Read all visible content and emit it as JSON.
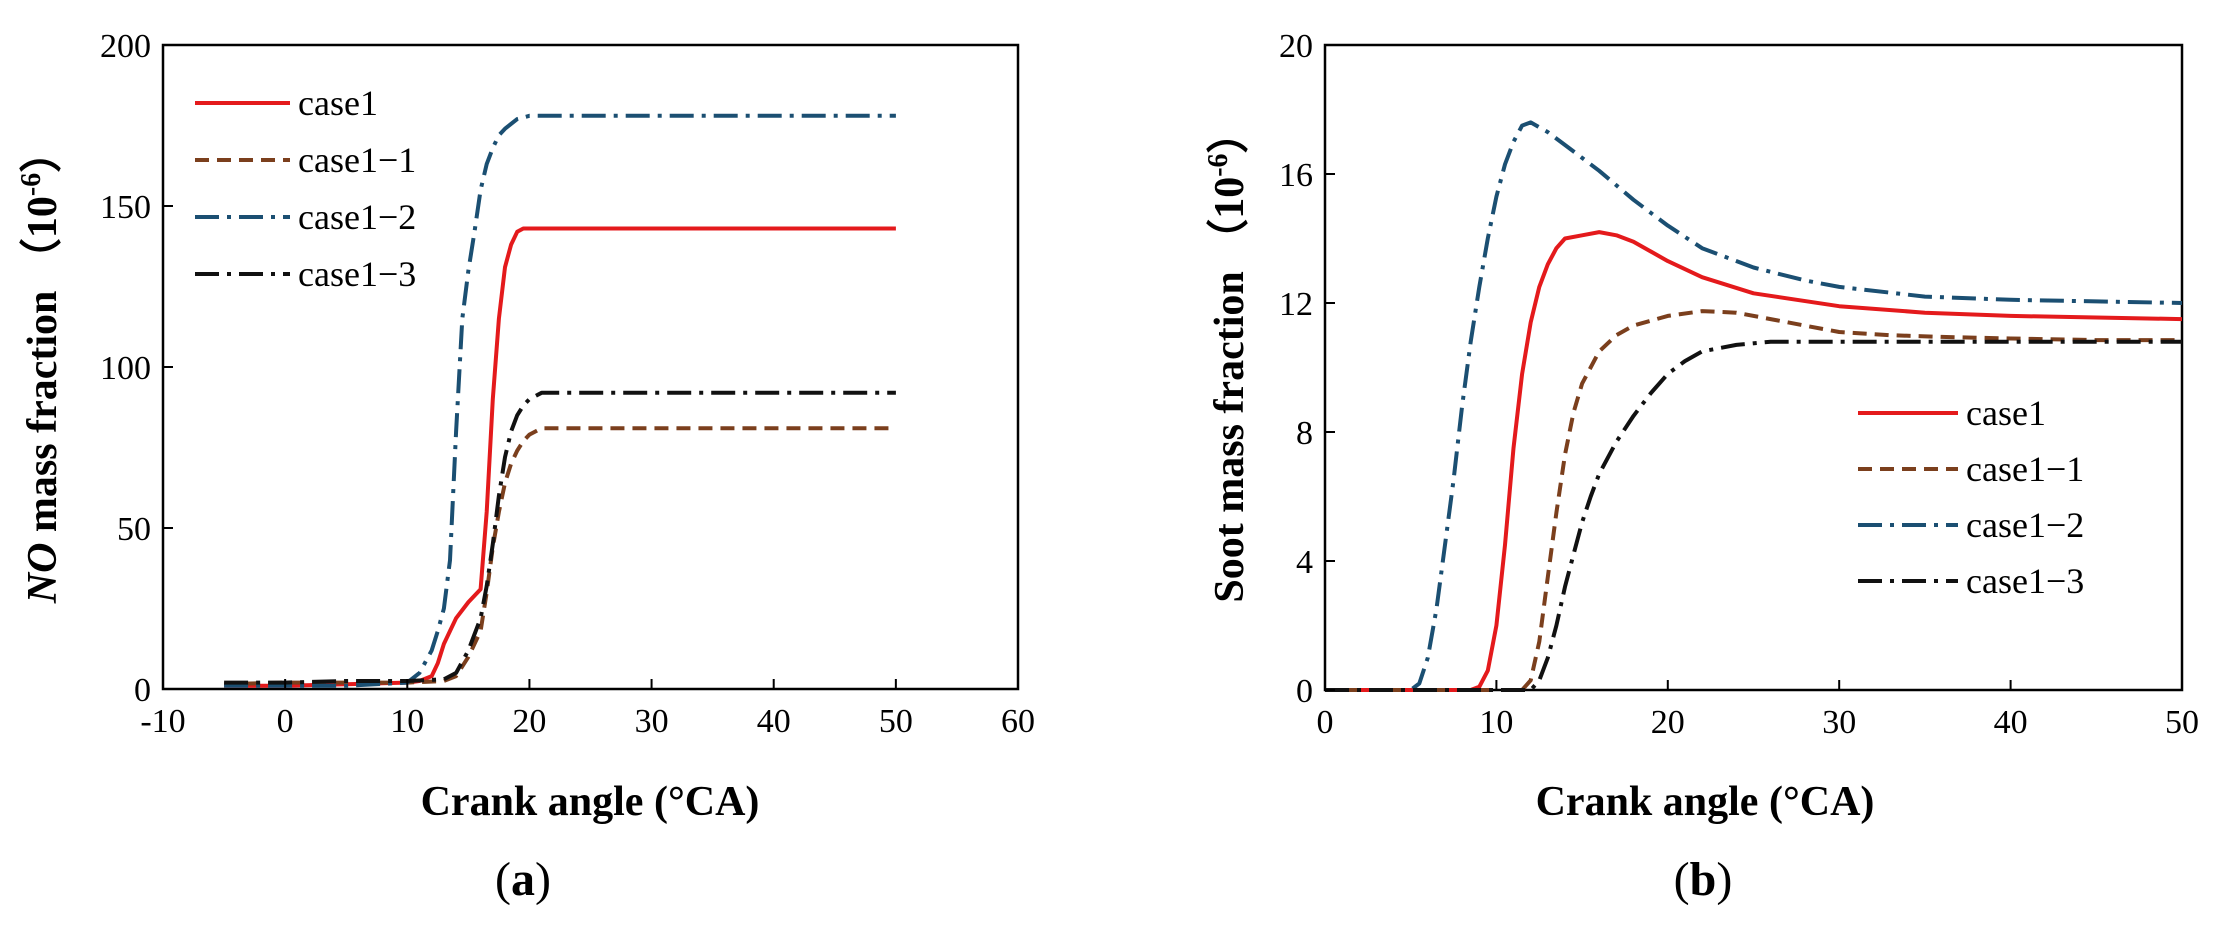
{
  "chart_data": [
    {
      "type": "line",
      "panel_label": "(a)",
      "panel_letter": "a",
      "xlabel": "Crank angle (°CA)",
      "ylabel_prefix": "NO",
      "ylabel_rest": " mass fraction （10",
      "ylabel_exp": "-6",
      "ylabel_close": "）",
      "xlim": [
        -10,
        60
      ],
      "ylim": [
        0,
        200
      ],
      "xticks": [
        -10,
        0,
        10,
        20,
        30,
        40,
        50,
        60
      ],
      "yticks": [
        0,
        50,
        100,
        150,
        200
      ],
      "legend_position": "top-left",
      "series": [
        {
          "name": "case1",
          "color": "#e41a1c",
          "dash": "solid",
          "x": [
            -5,
            0,
            5,
            10,
            11,
            12,
            12.5,
            13,
            13.5,
            14,
            15,
            16,
            16.5,
            17,
            17.5,
            18,
            18.5,
            19,
            19.5,
            20,
            25,
            30,
            35,
            40,
            45,
            50
          ],
          "y": [
            1,
            1,
            1.5,
            2,
            2.5,
            4,
            8,
            14,
            18,
            22,
            27,
            31,
            55,
            90,
            115,
            131,
            138,
            142,
            143,
            143,
            143,
            143,
            143,
            143,
            143,
            143
          ]
        },
        {
          "name": "case1−1",
          "color": "#7b3f1d",
          "dash": "dashed",
          "x": [
            -5,
            0,
            5,
            10,
            13,
            14,
            15,
            16,
            16.5,
            17,
            17.5,
            18,
            18.5,
            19,
            19.5,
            20,
            21,
            25,
            30,
            35,
            40,
            45,
            50
          ],
          "y": [
            1.5,
            2,
            2,
            2,
            2.5,
            4,
            10,
            18,
            30,
            44,
            55,
            64,
            70,
            74,
            77,
            79,
            81,
            81,
            81,
            81,
            81,
            81,
            81
          ]
        },
        {
          "name": "case1−2",
          "color": "#1b4f72",
          "dash": "dashdot",
          "x": [
            -5,
            0,
            5,
            10,
            11,
            12,
            12.5,
            13,
            13.5,
            14,
            14.5,
            15,
            15.5,
            16,
            16.5,
            17,
            17.5,
            18,
            19,
            20,
            25,
            30,
            35,
            40,
            45,
            50
          ],
          "y": [
            1,
            1,
            1,
            2,
            5,
            12,
            18,
            25,
            40,
            80,
            115,
            130,
            142,
            155,
            163,
            168,
            172,
            174,
            177,
            178,
            178,
            178,
            178,
            178,
            178,
            178
          ]
        },
        {
          "name": "case1−3",
          "color": "#111111",
          "dash": "dashdot",
          "x": [
            -5,
            0,
            5,
            10,
            13,
            14,
            15,
            16,
            16.5,
            17,
            17.5,
            18,
            18.5,
            19,
            19.5,
            20,
            21,
            25,
            30,
            35,
            40,
            45,
            50
          ],
          "y": [
            2,
            2,
            2.5,
            2.5,
            3,
            5,
            12,
            22,
            32,
            45,
            60,
            72,
            80,
            85,
            88,
            90,
            92,
            92,
            92,
            92,
            92,
            92,
            92
          ]
        }
      ]
    },
    {
      "type": "line",
      "panel_label": "(b)",
      "panel_letter": "b",
      "xlabel": "Crank angle (°CA)",
      "ylabel_prefix": "",
      "ylabel_rest": "Soot mass fraction （10",
      "ylabel_exp": "-6",
      "ylabel_close": "）",
      "xlim": [
        0,
        50
      ],
      "ylim": [
        0,
        20
      ],
      "xticks": [
        0,
        10,
        20,
        30,
        40,
        50
      ],
      "yticks": [
        0,
        4,
        8,
        12,
        16,
        20
      ],
      "legend_position": "center-right",
      "series": [
        {
          "name": "case1",
          "color": "#e41a1c",
          "dash": "solid",
          "x": [
            0,
            5,
            8.5,
            9,
            9.5,
            10,
            10.5,
            11,
            11.5,
            12,
            12.5,
            13,
            13.5,
            14,
            15,
            16,
            17,
            18,
            20,
            22,
            25,
            30,
            35,
            40,
            45,
            50
          ],
          "y": [
            0,
            0,
            0,
            0.1,
            0.6,
            2,
            4.5,
            7.5,
            9.8,
            11.4,
            12.5,
            13.2,
            13.7,
            14,
            14.1,
            14.2,
            14.1,
            13.9,
            13.3,
            12.8,
            12.3,
            11.9,
            11.7,
            11.6,
            11.55,
            11.5
          ]
        },
        {
          "name": "case1−1",
          "color": "#7b3f1d",
          "dash": "dashed",
          "x": [
            0,
            8,
            11.5,
            12,
            12.5,
            13,
            13.5,
            14,
            14.5,
            15,
            16,
            17,
            18,
            20,
            22,
            24,
            26,
            28,
            30,
            33,
            36,
            40,
            45,
            50
          ],
          "y": [
            0,
            0,
            0,
            0.3,
            1.5,
            3.5,
            5.5,
            7.3,
            8.6,
            9.5,
            10.5,
            11,
            11.3,
            11.6,
            11.75,
            11.7,
            11.5,
            11.3,
            11.1,
            11,
            10.95,
            10.9,
            10.85,
            10.85
          ]
        },
        {
          "name": "case1−2",
          "color": "#1b4f72",
          "dash": "dashdot",
          "x": [
            0,
            5,
            5.5,
            6,
            6.5,
            7,
            7.5,
            8,
            8.5,
            9,
            9.5,
            10,
            10.5,
            11,
            11.5,
            12,
            13,
            14,
            15,
            16,
            18,
            20,
            22,
            25,
            28,
            30,
            35,
            40,
            45,
            50
          ],
          "y": [
            0,
            0,
            0.2,
            1,
            2.5,
            4.5,
            6.5,
            8.8,
            10.8,
            12.5,
            14,
            15.3,
            16.3,
            17,
            17.5,
            17.6,
            17.3,
            16.9,
            16.5,
            16.1,
            15.2,
            14.4,
            13.7,
            13.1,
            12.7,
            12.5,
            12.2,
            12.1,
            12.05,
            12
          ]
        },
        {
          "name": "case1−3",
          "color": "#111111",
          "dash": "dashdot",
          "x": [
            0,
            8,
            12,
            12.5,
            13,
            13.5,
            14,
            14.5,
            15,
            15.5,
            16,
            17,
            18,
            19,
            20,
            21,
            22,
            24,
            26,
            28,
            30,
            35,
            40,
            45,
            50
          ],
          "y": [
            0,
            0,
            0,
            0.3,
            1,
            2,
            3.2,
            4.2,
            5.2,
            6,
            6.7,
            7.7,
            8.5,
            9.2,
            9.8,
            10.2,
            10.5,
            10.7,
            10.8,
            10.8,
            10.8,
            10.8,
            10.8,
            10.8,
            10.8
          ]
        }
      ]
    }
  ]
}
